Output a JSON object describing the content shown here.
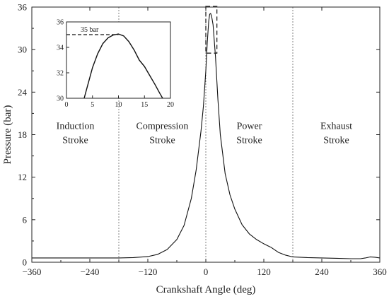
{
  "chart_data": {
    "type": "line",
    "xlabel": "Crankshaft Angle (deg)",
    "ylabel": "Pressure (bar)",
    "xlim": [
      -360,
      360
    ],
    "ylim": [
      0,
      36
    ],
    "xticks": [
      -360,
      -240,
      -120,
      0,
      120,
      240,
      360
    ],
    "yticks": [
      0,
      6,
      12,
      18,
      24,
      30,
      36
    ],
    "stroke_dividers": [
      -180,
      0,
      180
    ],
    "stroke_labels": [
      {
        "lines": [
          "Induction",
          "Stroke"
        ],
        "x": -270,
        "y": 18
      },
      {
        "lines": [
          "Compression",
          "Stroke"
        ],
        "x": -90,
        "y": 18
      },
      {
        "lines": [
          "Power",
          "Stroke"
        ],
        "x": 90,
        "y": 18
      },
      {
        "lines": [
          "Exhaust",
          "Stroke"
        ],
        "x": 270,
        "y": 18
      }
    ],
    "zoom_box": {
      "x": [
        0,
        20
      ],
      "y": [
        29.5,
        36
      ]
    },
    "series": [
      {
        "x": [
          -360,
          -300,
          -240,
          -180,
          -150,
          -120,
          -100,
          -80,
          -60,
          -45,
          -30,
          -20,
          -10,
          -5,
          0,
          3,
          6,
          8,
          10,
          12,
          15,
          20,
          25,
          30,
          40,
          50,
          60,
          75,
          90,
          105,
          120,
          135,
          150,
          165,
          180,
          210,
          240,
          270,
          300,
          320,
          330,
          340,
          350,
          360
        ],
        "y": [
          0.6,
          0.6,
          0.6,
          0.6,
          0.65,
          0.8,
          1.1,
          1.8,
          3.2,
          5.2,
          9.0,
          13.0,
          18.5,
          22.0,
          27.0,
          31.0,
          34.0,
          35.0,
          35.1,
          34.7,
          33.5,
          29.0,
          23.0,
          18.0,
          12.5,
          9.5,
          7.5,
          5.3,
          4.0,
          3.2,
          2.6,
          2.1,
          1.4,
          1.0,
          0.75,
          0.65,
          0.6,
          0.55,
          0.5,
          0.5,
          0.6,
          0.75,
          0.7,
          0.6
        ]
      }
    ],
    "inset": {
      "xlim": [
        0,
        20
      ],
      "ylim": [
        30,
        36
      ],
      "xticks": [
        0,
        5,
        10,
        15,
        20
      ],
      "yticks": [
        30,
        32,
        34,
        36
      ],
      "annotation": "35 bar",
      "reference_y": 35,
      "x": [
        3.4,
        5,
        6,
        7,
        8,
        9,
        10,
        11,
        12,
        13,
        14,
        15,
        16,
        17,
        18,
        18.5
      ],
      "y": [
        30,
        32.4,
        33.5,
        34.3,
        34.75,
        34.97,
        35.05,
        34.9,
        34.45,
        33.8,
        33.0,
        32.5,
        31.8,
        31.1,
        30.35,
        30
      ]
    }
  }
}
